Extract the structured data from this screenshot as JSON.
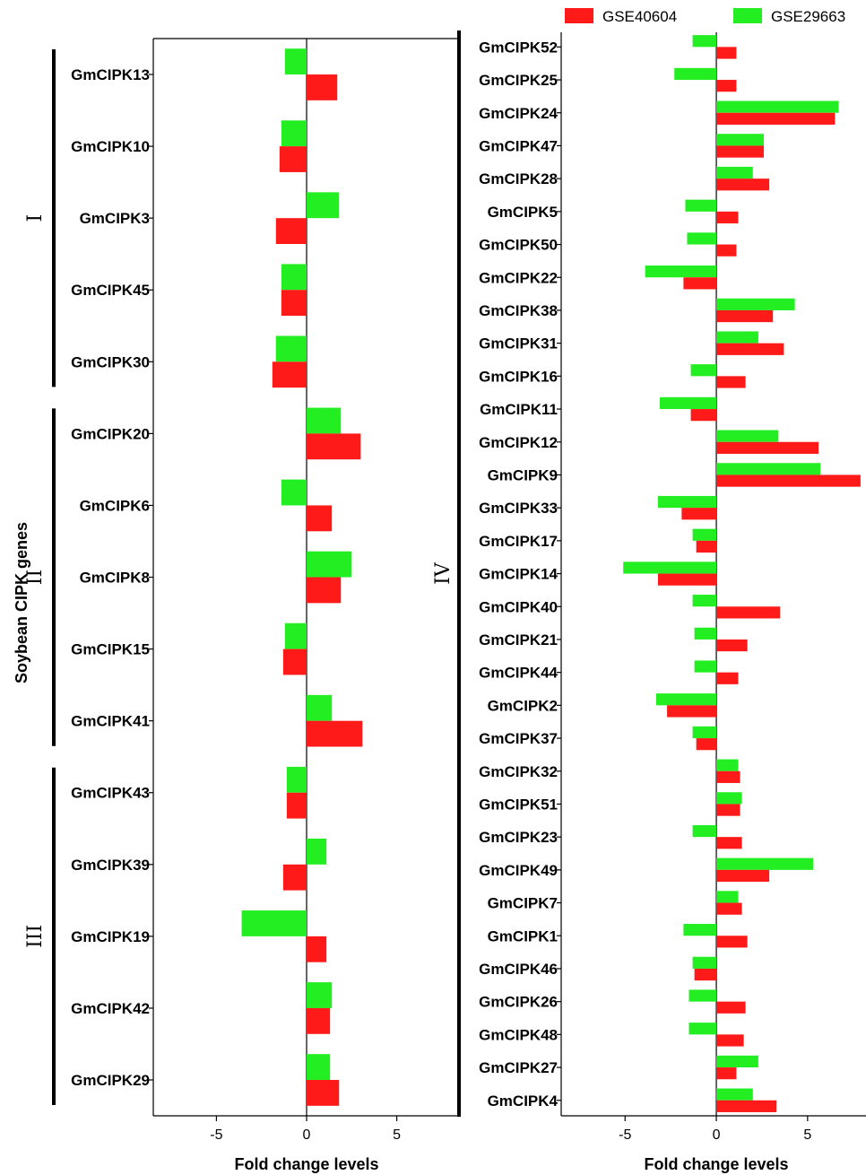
{
  "y_axis_title": "Soybean CIPK genes",
  "legend": [
    {
      "name": "GSE40604",
      "color": "#ff1a1a"
    },
    {
      "name": "GSE29663",
      "color": "#22ee22"
    }
  ],
  "chart_data": [
    {
      "type": "bar",
      "orientation": "horizontal",
      "xlabel": "Fold change levels",
      "xlim": [
        -8.5,
        8.5
      ],
      "xticks": [
        -5,
        0,
        5
      ],
      "categories": [
        "GmCIPK13",
        "GmCIPK10",
        "GmCIPK3",
        "GmCIPK45",
        "GmCIPK30",
        "GmCIPK20",
        "GmCIPK6",
        "GmCIPK8",
        "GmCIPK15",
        "GmCIPK41",
        "GmCIPK43",
        "GmCIPK39",
        "GmCIPK19",
        "GmCIPK42",
        "GmCIPK29"
      ],
      "groups": [
        {
          "label": "I",
          "from": 0,
          "to": 4
        },
        {
          "label": "II",
          "from": 5,
          "to": 9
        },
        {
          "label": "III",
          "from": 10,
          "to": 14
        }
      ],
      "series": [
        {
          "name": "GSE29663",
          "color": "#22ee22",
          "values": [
            -1.2,
            -1.4,
            1.8,
            -1.4,
            -1.7,
            1.9,
            -1.4,
            2.5,
            -1.2,
            1.4,
            -1.1,
            1.1,
            -3.6,
            1.4,
            1.3
          ]
        },
        {
          "name": "GSE40604",
          "color": "#ff1a1a",
          "values": [
            1.7,
            -1.5,
            -1.7,
            -1.4,
            -1.9,
            3.0,
            1.4,
            1.9,
            -1.3,
            3.1,
            -1.1,
            -1.3,
            1.1,
            1.3,
            1.8
          ]
        }
      ]
    },
    {
      "type": "bar",
      "orientation": "horizontal",
      "xlabel": "Fold change levels",
      "xlim": [
        -8.5,
        8.2
      ],
      "xticks": [
        -5,
        0,
        5
      ],
      "categories": [
        "GmCIPK52",
        "GmCIPK25",
        "GmCIPK24",
        "GmCIPK47",
        "GmCIPK28",
        "GmCIPK5",
        "GmCIPK50",
        "GmCIPK22",
        "GmCIPK38",
        "GmCIPK31",
        "GmCIPK16",
        "GmCIPK11",
        "GmCIPK12",
        "GmCIPK9",
        "GmCIPK33",
        "GmCIPK17",
        "GmCIPK14",
        "GmCIPK40",
        "GmCIPK21",
        "GmCIPK44",
        "GmCIPK2",
        "GmCIPK37",
        "GmCIPK32",
        "GmCIPK51",
        "GmCIPK23",
        "GmCIPK49",
        "GmCIPK7",
        "GmCIPK1",
        "GmCIPK46",
        "GmCIPK26",
        "GmCIPK48",
        "GmCIPK27",
        "GmCIPK4"
      ],
      "groups": [
        {
          "label": "IV",
          "from": 0,
          "to": 32
        }
      ],
      "series": [
        {
          "name": "GSE29663",
          "color": "#22ee22",
          "values": [
            -1.3,
            -2.3,
            6.7,
            2.6,
            2.0,
            -1.7,
            -1.6,
            -3.9,
            4.3,
            2.3,
            -1.4,
            -3.1,
            3.4,
            5.7,
            -3.2,
            -1.3,
            -5.1,
            -1.3,
            -1.2,
            -1.2,
            -3.3,
            -1.3,
            1.2,
            1.4,
            -1.3,
            5.3,
            1.2,
            -1.8,
            -1.3,
            -1.5,
            -1.5,
            2.3,
            2.0
          ]
        },
        {
          "name": "GSE40604",
          "color": "#ff1a1a",
          "values": [
            1.1,
            1.1,
            6.5,
            2.6,
            2.9,
            1.2,
            1.1,
            -1.8,
            3.1,
            3.7,
            1.6,
            -1.4,
            5.6,
            7.9,
            -1.9,
            -1.1,
            -3.2,
            3.5,
            1.7,
            1.2,
            -2.7,
            -1.1,
            1.3,
            1.3,
            1.4,
            2.9,
            1.4,
            1.7,
            -1.2,
            1.6,
            1.5,
            1.1,
            3.3
          ]
        }
      ]
    }
  ]
}
